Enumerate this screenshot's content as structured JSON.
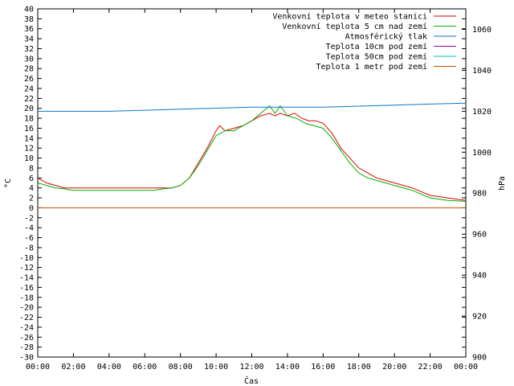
{
  "chart_data": {
    "type": "line",
    "xlabel": "Čas",
    "ylabel_left": "°C",
    "ylabel_right": "hPa",
    "xlim": [
      0,
      24
    ],
    "ylim_left": [
      -30,
      40
    ],
    "ylim_right": [
      900,
      1070
    ],
    "grid": false,
    "legend_position": "top-right",
    "x_ticks": [
      "00:00",
      "02:00",
      "04:00",
      "06:00",
      "08:00",
      "10:00",
      "12:00",
      "14:00",
      "16:00",
      "18:00",
      "20:00",
      "22:00",
      "00:00"
    ],
    "y_ticks_left": [
      "40",
      "38",
      "36",
      "34",
      "32",
      "30",
      "28",
      "26",
      "24",
      "22",
      "20",
      "18",
      "16",
      "14",
      "12",
      "10",
      "8",
      "6",
      "4",
      "2",
      "0",
      "-2",
      "-4",
      "-6",
      "-8",
      "-10",
      "-12",
      "-14",
      "-16",
      "-18",
      "-20",
      "-22",
      "-24",
      "-26",
      "-28",
      "-30"
    ],
    "y_ticks_right": [
      "1060",
      "1040",
      "1020",
      "1000",
      "980",
      "960",
      "940",
      "920",
      "900"
    ],
    "series": [
      {
        "name": "Venkovní teplota v meteo stanici",
        "color": "#e00000",
        "axis": "left",
        "x": [
          0,
          0.5,
          1,
          1.5,
          2,
          3,
          4,
          5,
          6,
          6.5,
          7,
          7.5,
          8,
          8.5,
          9,
          9.5,
          10,
          10.2,
          10.5,
          11,
          11.5,
          12,
          12.5,
          13,
          13.3,
          13.6,
          14,
          14.4,
          14.8,
          15.2,
          15.6,
          16,
          16.5,
          17,
          17.5,
          18,
          18.5,
          19,
          19.5,
          20,
          21,
          22,
          23,
          24
        ],
        "values": [
          6,
          5,
          4.5,
          4,
          4,
          4,
          4,
          4,
          4,
          4,
          4,
          4,
          4.5,
          6,
          9,
          12,
          15.5,
          16.5,
          15.5,
          16,
          16.5,
          17.5,
          18.5,
          19,
          18.5,
          19,
          18.5,
          19,
          18,
          17.5,
          17.5,
          17,
          15,
          12,
          10,
          8,
          7,
          6,
          5.5,
          5,
          4,
          2.5,
          2,
          1.5
        ]
      },
      {
        "name": "Venkovní teplota 5 cm nad zemí",
        "color": "#00b000",
        "axis": "left",
        "x": [
          0,
          0.5,
          1,
          1.5,
          2,
          3,
          4,
          5,
          6,
          6.5,
          7,
          7.5,
          8,
          8.5,
          9,
          9.5,
          10,
          10.5,
          11,
          11.5,
          12,
          12.5,
          13,
          13.3,
          13.6,
          14,
          14.5,
          15,
          15.5,
          16,
          16.5,
          17,
          17.5,
          18,
          18.5,
          19,
          19.5,
          20,
          21,
          22,
          23,
          24
        ],
        "values": [
          5,
          4.5,
          4,
          3.8,
          3.5,
          3.5,
          3.5,
          3.5,
          3.5,
          3.5,
          3.8,
          4,
          4.5,
          6,
          8.5,
          11.5,
          14.5,
          15.5,
          15.5,
          16.5,
          17.5,
          19,
          20.5,
          19,
          20.5,
          18.5,
          18,
          17,
          16.5,
          16,
          14,
          11.5,
          9,
          7,
          6,
          5.5,
          5,
          4.5,
          3.5,
          2,
          1.5,
          1.3
        ]
      },
      {
        "name": "Atmosférický tlak",
        "color": "#0a78c8",
        "axis": "right",
        "x": [
          0,
          2,
          4,
          6,
          8,
          10,
          12,
          14,
          16,
          18,
          20,
          22,
          24
        ],
        "values": [
          1020,
          1020,
          1020,
          1020.5,
          1021,
          1021.5,
          1022,
          1022,
          1022,
          1022.5,
          1023,
          1023.5,
          1024
        ]
      },
      {
        "name": "Teplota 10cm pod zemí",
        "color": "#a000a0",
        "axis": "left",
        "x": [],
        "values": []
      },
      {
        "name": "Teplota 50cm pod zemí",
        "color": "#00c0c0",
        "axis": "left",
        "x": [],
        "values": []
      },
      {
        "name": "Teplota 1 metr pod zemí",
        "color": "#c85000",
        "axis": "left",
        "x": [
          0,
          24
        ],
        "values": [
          0,
          0
        ]
      }
    ]
  }
}
